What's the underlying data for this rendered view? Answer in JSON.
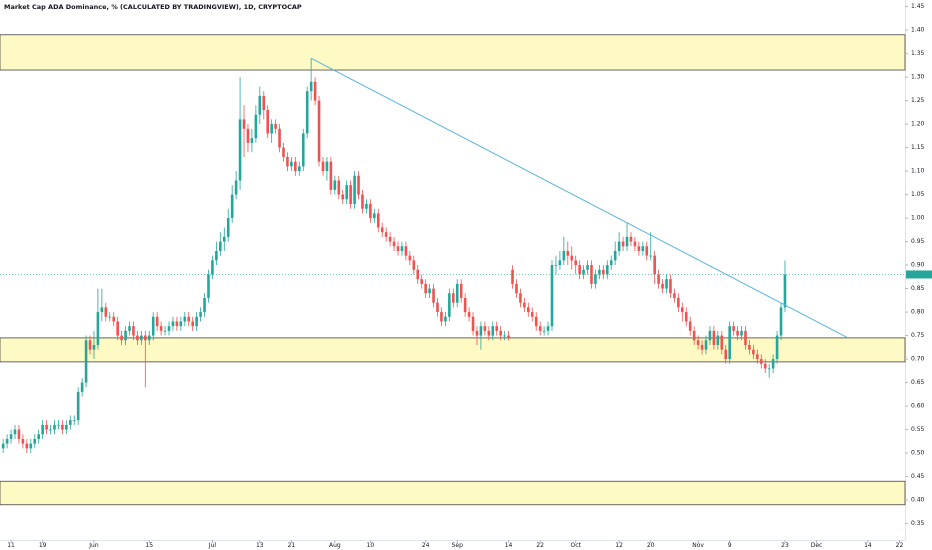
{
  "chart_data": {
    "type": "candlestick",
    "title": "Market Cap ADA Dominance, % (CALCULATED BY TRADINGVIEW), 1D, CRYPTOCAP",
    "up_color": "#26a69a",
    "down_color": "#ef5350",
    "xlim": [
      -0.8,
      228.4
    ],
    "xticks": [
      {
        "value": 2,
        "label": "11"
      },
      {
        "value": 10,
        "label": "19"
      },
      {
        "value": 23,
        "label": "Jun"
      },
      {
        "value": 37,
        "label": "15"
      },
      {
        "value": 53,
        "label": "Jul"
      },
      {
        "value": 65,
        "label": "13"
      },
      {
        "value": 73,
        "label": "21"
      },
      {
        "value": 84,
        "label": "Aug"
      },
      {
        "value": 93,
        "label": "10"
      },
      {
        "value": 107,
        "label": "24"
      },
      {
        "value": 115,
        "label": "Sep"
      },
      {
        "value": 128,
        "label": "14"
      },
      {
        "value": 136,
        "label": "22"
      },
      {
        "value": 145,
        "label": "Oct"
      },
      {
        "value": 156,
        "label": "12"
      },
      {
        "value": 164,
        "label": "20"
      },
      {
        "value": 176,
        "label": "Nov"
      },
      {
        "value": 184,
        "label": "9"
      },
      {
        "value": 198,
        "label": "23"
      },
      {
        "value": 206,
        "label": "Dec"
      },
      {
        "value": 219,
        "label": "14"
      },
      {
        "value": 227,
        "label": "22"
      }
    ],
    "ylim": [
      0.315,
      1.464
    ],
    "yticks": [
      1.45,
      {
        "value": 1.4,
        "label": "1.40"
      },
      1.35,
      {
        "value": 1.3,
        "label": "1.30"
      },
      1.25,
      {
        "value": 1.2,
        "label": "1.20"
      },
      1.15,
      {
        "value": 1.1,
        "label": "1.10"
      },
      1.05,
      {
        "value": 1.0,
        "label": "1.00"
      },
      0.95,
      {
        "value": 0.9,
        "label": "0.90"
      },
      0.85,
      {
        "value": 0.8,
        "label": "0.80"
      },
      0.75,
      {
        "value": 0.7,
        "label": "0.70"
      },
      0.65,
      {
        "value": 0.6,
        "label": "0.60"
      },
      0.55,
      {
        "value": 0.5,
        "label": "0.50"
      },
      0.45,
      {
        "value": 0.4,
        "label": "0.40"
      },
      0.35
    ],
    "zones": [
      [
        1.315,
        1.39
      ],
      [
        0.694,
        0.745
      ],
      [
        0.39,
        0.44
      ]
    ],
    "zone_color": "#fff9c4",
    "trendline": {
      "color": "#5ab4e0",
      "from": {
        "index": 78,
        "value": 1.34
      },
      "to": {
        "index": 214,
        "value": 0.745
      }
    },
    "open": [
      0.51,
      0.52,
      0.53,
      0.54,
      0.55,
      0.53,
      0.52,
      0.51,
      0.52,
      0.53,
      0.54,
      0.56,
      0.55,
      0.55,
      0.56,
      0.56,
      0.55,
      0.56,
      0.57,
      0.57,
      0.63,
      0.65,
      0.74,
      0.72,
      0.73,
      0.8,
      0.81,
      0.79,
      0.79,
      0.78,
      0.75,
      0.74,
      0.76,
      0.77,
      0.75,
      0.74,
      0.75,
      0.74,
      0.75,
      0.79,
      0.77,
      0.76,
      0.76,
      0.77,
      0.78,
      0.77,
      0.78,
      0.79,
      0.78,
      0.77,
      0.79,
      0.8,
      0.83,
      0.88,
      0.91,
      0.93,
      0.95,
      0.96,
      1.0,
      1.05,
      1.08,
      1.21,
      1.19,
      1.16,
      1.17,
      1.22,
      1.26,
      1.23,
      1.18,
      1.2,
      1.19,
      1.15,
      1.13,
      1.11,
      1.12,
      1.1,
      1.11,
      1.18,
      1.27,
      1.29,
      1.25,
      1.12,
      1.1,
      1.12,
      1.06,
      1.08,
      1.05,
      1.04,
      1.07,
      1.03,
      1.09,
      1.05,
      1.02,
      1.03,
      1.0,
      1.01,
      0.98,
      0.97,
      0.96,
      0.95,
      0.94,
      0.93,
      0.94,
      0.92,
      0.91,
      0.89,
      0.87,
      0.86,
      0.84,
      0.85,
      0.82,
      0.8,
      0.78,
      0.79,
      0.84,
      0.82,
      0.86,
      0.83,
      0.8,
      0.79,
      0.76,
      0.75,
      0.77,
      0.76,
      0.75,
      0.77,
      0.76,
      0.75,
      0.75,
      0.89,
      0.86,
      0.84,
      0.82,
      0.81,
      0.8,
      0.79,
      0.77,
      0.76,
      0.76,
      0.77,
      0.9,
      0.9,
      0.91,
      0.93,
      0.92,
      0.91,
      0.9,
      0.88,
      0.89,
      0.9,
      0.86,
      0.88,
      0.89,
      0.88,
      0.9,
      0.91,
      0.93,
      0.95,
      0.94,
      0.96,
      0.95,
      0.94,
      0.93,
      0.94,
      0.92,
      0.92,
      0.88,
      0.86,
      0.85,
      0.87,
      0.84,
      0.83,
      0.81,
      0.8,
      0.78,
      0.76,
      0.74,
      0.73,
      0.72,
      0.74,
      0.76,
      0.73,
      0.75,
      0.72,
      0.7,
      0.77,
      0.76,
      0.75,
      0.76,
      0.73,
      0.72,
      0.71,
      0.7,
      0.69,
      0.68,
      0.68,
      0.7,
      0.75,
      0.81
    ],
    "high": [
      0.53,
      0.54,
      0.55,
      0.56,
      0.56,
      0.54,
      0.53,
      0.53,
      0.54,
      0.55,
      0.57,
      0.57,
      0.56,
      0.57,
      0.57,
      0.57,
      0.57,
      0.58,
      0.58,
      0.64,
      0.66,
      0.75,
      0.75,
      0.76,
      0.85,
      0.85,
      0.82,
      0.8,
      0.8,
      0.79,
      0.76,
      0.77,
      0.78,
      0.78,
      0.76,
      0.76,
      0.76,
      0.76,
      0.8,
      0.8,
      0.78,
      0.77,
      0.78,
      0.79,
      0.79,
      0.79,
      0.8,
      0.8,
      0.79,
      0.8,
      0.81,
      0.84,
      0.89,
      0.92,
      0.95,
      0.97,
      0.98,
      1.02,
      1.07,
      1.1,
      1.3,
      1.24,
      1.2,
      1.19,
      1.24,
      1.28,
      1.27,
      1.24,
      1.21,
      1.21,
      1.2,
      1.16,
      1.14,
      1.13,
      1.13,
      1.12,
      1.19,
      1.28,
      1.34,
      1.3,
      1.26,
      1.13,
      1.13,
      1.13,
      1.09,
      1.09,
      1.06,
      1.08,
      1.08,
      1.1,
      1.1,
      1.06,
      1.04,
      1.04,
      1.02,
      1.02,
      0.99,
      0.98,
      0.97,
      0.96,
      0.95,
      0.95,
      0.95,
      0.93,
      0.92,
      0.9,
      0.88,
      0.87,
      0.86,
      0.86,
      0.83,
      0.81,
      0.8,
      0.85,
      0.85,
      0.87,
      0.87,
      0.84,
      0.81,
      0.8,
      0.77,
      0.78,
      0.78,
      0.77,
      0.78,
      0.78,
      0.77,
      0.76,
      0.76,
      0.9,
      0.87,
      0.85,
      0.83,
      0.82,
      0.81,
      0.8,
      0.78,
      0.77,
      0.78,
      0.91,
      0.92,
      0.93,
      0.96,
      0.95,
      0.94,
      0.92,
      0.91,
      0.9,
      0.91,
      0.91,
      0.89,
      0.9,
      0.9,
      0.91,
      0.92,
      0.95,
      0.97,
      0.96,
      0.99,
      0.97,
      0.96,
      0.95,
      0.95,
      0.95,
      0.97,
      0.93,
      0.89,
      0.87,
      0.88,
      0.88,
      0.85,
      0.84,
      0.82,
      0.81,
      0.79,
      0.77,
      0.75,
      0.74,
      0.75,
      0.77,
      0.77,
      0.76,
      0.76,
      0.73,
      0.78,
      0.78,
      0.77,
      0.77,
      0.77,
      0.74,
      0.73,
      0.72,
      0.71,
      0.7,
      0.69,
      0.71,
      0.76,
      0.82,
      0.91
    ],
    "low": [
      0.5,
      0.51,
      0.52,
      0.53,
      0.52,
      0.51,
      0.5,
      0.5,
      0.51,
      0.52,
      0.53,
      0.54,
      0.54,
      0.54,
      0.55,
      0.54,
      0.54,
      0.55,
      0.56,
      0.56,
      0.62,
      0.64,
      0.71,
      0.7,
      0.72,
      0.78,
      0.78,
      0.78,
      0.77,
      0.74,
      0.73,
      0.73,
      0.75,
      0.74,
      0.73,
      0.73,
      0.64,
      0.73,
      0.74,
      0.76,
      0.75,
      0.75,
      0.75,
      0.76,
      0.76,
      0.76,
      0.77,
      0.77,
      0.76,
      0.76,
      0.78,
      0.79,
      0.82,
      0.87,
      0.9,
      0.92,
      0.93,
      0.95,
      0.99,
      1.04,
      1.06,
      1.13,
      1.14,
      1.14,
      1.16,
      1.2,
      1.21,
      1.17,
      1.16,
      1.18,
      1.14,
      1.12,
      1.1,
      1.1,
      1.09,
      1.09,
      1.1,
      1.17,
      1.25,
      1.24,
      1.11,
      1.09,
      1.08,
      1.05,
      1.05,
      1.04,
      1.03,
      1.03,
      1.02,
      1.02,
      1.04,
      1.01,
      1.01,
      0.99,
      0.99,
      0.97,
      0.96,
      0.95,
      0.94,
      0.93,
      0.92,
      0.92,
      0.91,
      0.9,
      0.88,
      0.86,
      0.85,
      0.83,
      0.83,
      0.81,
      0.79,
      0.77,
      0.77,
      0.78,
      0.81,
      0.81,
      0.82,
      0.79,
      0.78,
      0.75,
      0.73,
      0.72,
      0.75,
      0.74,
      0.74,
      0.75,
      0.74,
      0.74,
      0.74,
      0.85,
      0.83,
      0.81,
      0.8,
      0.79,
      0.78,
      0.76,
      0.75,
      0.75,
      0.75,
      0.76,
      0.88,
      0.89,
      0.9,
      0.9,
      0.89,
      0.88,
      0.87,
      0.87,
      0.88,
      0.85,
      0.85,
      0.87,
      0.87,
      0.87,
      0.89,
      0.9,
      0.92,
      0.93,
      0.93,
      0.94,
      0.93,
      0.92,
      0.92,
      0.91,
      0.91,
      0.86,
      0.85,
      0.84,
      0.84,
      0.83,
      0.82,
      0.8,
      0.78,
      0.77,
      0.75,
      0.73,
      0.72,
      0.71,
      0.71,
      0.73,
      0.72,
      0.72,
      0.71,
      0.69,
      0.69,
      0.75,
      0.74,
      0.74,
      0.72,
      0.71,
      0.7,
      0.69,
      0.68,
      0.67,
      0.66,
      0.67,
      0.69,
      0.74,
      0.8
    ],
    "close": [
      0.52,
      0.53,
      0.54,
      0.55,
      0.53,
      0.52,
      0.51,
      0.52,
      0.53,
      0.54,
      0.56,
      0.55,
      0.55,
      0.56,
      0.56,
      0.55,
      0.56,
      0.57,
      0.57,
      0.63,
      0.65,
      0.74,
      0.72,
      0.73,
      0.8,
      0.81,
      0.79,
      0.79,
      0.78,
      0.75,
      0.74,
      0.76,
      0.77,
      0.75,
      0.74,
      0.75,
      0.74,
      0.75,
      0.79,
      0.77,
      0.76,
      0.76,
      0.77,
      0.78,
      0.77,
      0.78,
      0.79,
      0.78,
      0.77,
      0.79,
      0.8,
      0.83,
      0.88,
      0.91,
      0.93,
      0.95,
      0.96,
      1.0,
      1.05,
      1.08,
      1.21,
      1.19,
      1.16,
      1.17,
      1.22,
      1.26,
      1.23,
      1.18,
      1.2,
      1.19,
      1.15,
      1.13,
      1.11,
      1.12,
      1.1,
      1.11,
      1.18,
      1.27,
      1.29,
      1.25,
      1.12,
      1.1,
      1.12,
      1.06,
      1.08,
      1.05,
      1.04,
      1.07,
      1.03,
      1.09,
      1.05,
      1.02,
      1.03,
      1.0,
      1.01,
      0.98,
      0.97,
      0.96,
      0.95,
      0.94,
      0.93,
      0.94,
      0.92,
      0.91,
      0.89,
      0.87,
      0.86,
      0.84,
      0.85,
      0.82,
      0.8,
      0.78,
      0.79,
      0.84,
      0.82,
      0.86,
      0.83,
      0.8,
      0.79,
      0.76,
      0.75,
      0.77,
      0.76,
      0.75,
      0.77,
      0.76,
      0.75,
      0.75,
      0.745,
      0.86,
      0.84,
      0.82,
      0.81,
      0.8,
      0.79,
      0.77,
      0.76,
      0.76,
      0.77,
      0.9,
      0.9,
      0.91,
      0.93,
      0.92,
      0.91,
      0.9,
      0.88,
      0.89,
      0.9,
      0.86,
      0.88,
      0.89,
      0.88,
      0.9,
      0.91,
      0.93,
      0.95,
      0.94,
      0.96,
      0.95,
      0.94,
      0.93,
      0.94,
      0.92,
      0.92,
      0.88,
      0.86,
      0.85,
      0.87,
      0.84,
      0.83,
      0.81,
      0.8,
      0.78,
      0.76,
      0.74,
      0.73,
      0.72,
      0.74,
      0.76,
      0.73,
      0.75,
      0.72,
      0.7,
      0.77,
      0.76,
      0.75,
      0.76,
      0.73,
      0.72,
      0.71,
      0.7,
      0.69,
      0.68,
      0.68,
      0.7,
      0.75,
      0.81,
      0.88
    ]
  }
}
